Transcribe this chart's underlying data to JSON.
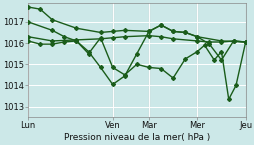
{
  "background_color": "#cce8e8",
  "grid_color": "#b8d8d8",
  "line_color": "#1a5c1a",
  "xlabel": "Pression niveau de la mer( hPa )",
  "x_tick_labels": [
    "Lun",
    "Ven",
    "Mar",
    "Mer",
    "Jeu"
  ],
  "x_tick_positions": [
    0,
    3.5,
    5.0,
    7.0,
    9.0
  ],
  "ylim": [
    1012.5,
    1017.9
  ],
  "yticks": [
    1013,
    1014,
    1015,
    1016,
    1017
  ],
  "vline_color": "#ddaaaa",
  "vlines_x": [
    0,
    3.5,
    5.0,
    7.0,
    9.0
  ],
  "series": [
    {
      "x": [
        0,
        1.0,
        2.0,
        3.0,
        3.5,
        4.0,
        5.0,
        5.5,
        6.0,
        7.0,
        7.5,
        8.0,
        8.5,
        9.0
      ],
      "y": [
        1016.3,
        1016.1,
        1016.15,
        1016.2,
        1016.25,
        1016.3,
        1016.35,
        1016.3,
        1016.2,
        1016.1,
        1016.05,
        1016.05,
        1016.1,
        1016.05
      ]
    },
    {
      "x": [
        0,
        0.5,
        1.0,
        2.0,
        3.0,
        3.5,
        4.0,
        5.0,
        5.5,
        6.0,
        6.5,
        7.0,
        8.0,
        9.0
      ],
      "y": [
        1017.7,
        1017.6,
        1017.1,
        1016.7,
        1016.5,
        1016.55,
        1016.6,
        1016.55,
        1016.85,
        1016.55,
        1016.5,
        1016.3,
        1016.1,
        1016.05
      ]
    },
    {
      "x": [
        0,
        1.0,
        1.5,
        2.0,
        2.5,
        3.0,
        3.5,
        4.0,
        4.5,
        5.0,
        5.5,
        6.0,
        6.5,
        7.0,
        7.5,
        8.0,
        8.5,
        9.0
      ],
      "y": [
        1017.0,
        1016.6,
        1016.3,
        1016.1,
        1015.6,
        1014.85,
        1014.05,
        1014.45,
        1015.5,
        1016.55,
        1016.85,
        1016.55,
        1016.5,
        1016.3,
        1015.95,
        1015.2,
        1016.1,
        1016.05
      ]
    },
    {
      "x": [
        0,
        0.5,
        1.0,
        1.5,
        2.0,
        2.5,
        3.0,
        3.5,
        4.0,
        4.5,
        5.0,
        5.5,
        6.0,
        6.5,
        7.0,
        7.3,
        7.7,
        8.0,
        8.3,
        8.6,
        9.0
      ],
      "y": [
        1016.1,
        1015.95,
        1015.95,
        1016.05,
        1016.1,
        1015.5,
        1016.25,
        1014.85,
        1014.5,
        1015.0,
        1014.85,
        1014.8,
        1014.35,
        1015.25,
        1015.6,
        1015.9,
        1015.2,
        1015.6,
        1013.35,
        1014.0,
        1016.05
      ]
    }
  ],
  "marker": "D",
  "marker_size": 2.0,
  "linewidth": 1.0
}
